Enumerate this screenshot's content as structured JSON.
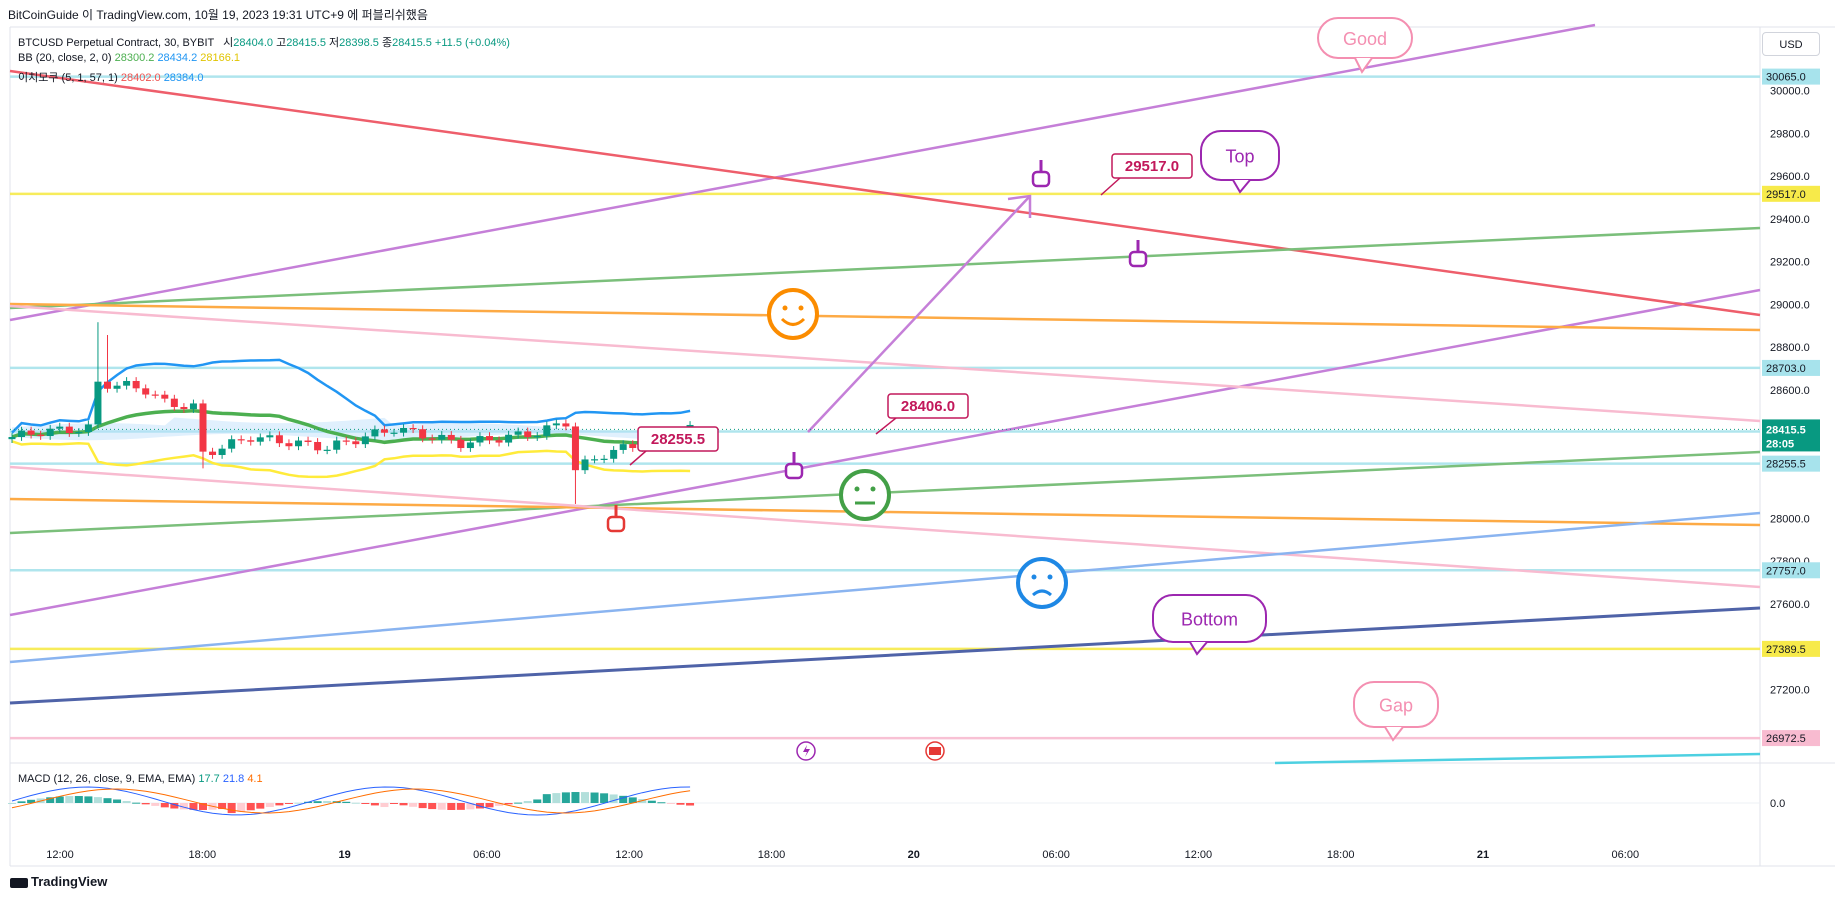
{
  "header": {
    "author": "BitCoinGuide 이 TradingView.com, 10월 19, 2023 19:31 UTC+9 에 퍼블리쉬했음",
    "symbol": "BTCUSD Perpetual Contract, 30, BYBIT",
    "ohlc": [
      {
        "label": "시",
        "value": "28404.0"
      },
      {
        "label": "고",
        "value": "28415.5"
      },
      {
        "label": "저",
        "value": "28398.5"
      },
      {
        "label": "종",
        "value": "28415.5"
      }
    ],
    "change": "+11.5 (+0.04%)",
    "bb_label": "BB (20, close, 2, 0)",
    "bb_values": [
      "28300.2",
      "28434.2",
      "28166.1"
    ],
    "ichimoku_label": "이치모쿠 (5, 1, 57, 1)",
    "ichimoku_values": [
      "28402.0",
      "28384.0"
    ],
    "macd_label": "MACD (12, 26, close, 9, EMA, EMA)",
    "macd_values": [
      "17.7",
      "21.8",
      "4.1"
    ]
  },
  "currency": "USD",
  "brand": "TradingView",
  "colors": {
    "up": "#089981",
    "down": "#f23645",
    "bb_basis": "#4caf50",
    "bb_upper": "#2196f3",
    "bb_lower": "#ffeb3b",
    "purple": "#c57fd8",
    "red": "#ee5e6b",
    "green": "#7bbf7b",
    "orange": "#fdaa45",
    "pink": "#f8bbd0",
    "cyan": "#a7e3ec",
    "yellow": "#f7ea4a",
    "blue": "#8ab4f0",
    "navy": "#4f63a8"
  },
  "chart_data": {
    "type": "candlestick",
    "y_axis": {
      "range": [
        26900,
        30300
      ],
      "ticks": [
        "30000.0",
        "29800.0",
        "29600.0",
        "29400.0",
        "29200.0",
        "29000.0",
        "28800.0",
        "28600.0",
        "28000.0",
        "27800.0",
        "27600.0",
        "27200.0"
      ]
    },
    "x_axis": {
      "ticks": [
        "12:00",
        "18:00",
        "19",
        "06:00",
        "12:00",
        "18:00",
        "20",
        "06:00",
        "12:00",
        "18:00",
        "21",
        "06:00"
      ]
    },
    "price_labels": [
      {
        "value": 30065.0,
        "text": "30065.0",
        "color": "#a7e3ec"
      },
      {
        "value": 29517.0,
        "text": "29517.0",
        "color": "#f7ea4a"
      },
      {
        "value": 28703.0,
        "text": "28703.0",
        "color": "#a7e3ec"
      },
      {
        "value": 28406.0,
        "text": "28406.0",
        "color": "#a7e3ec"
      },
      {
        "value": 28255.5,
        "text": "28255.5",
        "color": "#a7e3ec"
      },
      {
        "value": 27757.0,
        "text": "27757.0",
        "color": "#a7e3ec"
      },
      {
        "value": 27389.5,
        "text": "27389.5",
        "color": "#f7ea4a"
      },
      {
        "value": 26972.5,
        "text": "26972.5",
        "color": "#f8bbd0"
      }
    ],
    "last_price": {
      "value": 28415.5,
      "text": "28415.5",
      "countdown": "28:05"
    },
    "annotations": {
      "callouts": [
        "29517.0",
        "28406.0",
        "28255.5"
      ],
      "bubbles": [
        "Good",
        "Top",
        "Bottom",
        "Gap"
      ]
    },
    "macd": {
      "zero_label": "0.0"
    }
  }
}
